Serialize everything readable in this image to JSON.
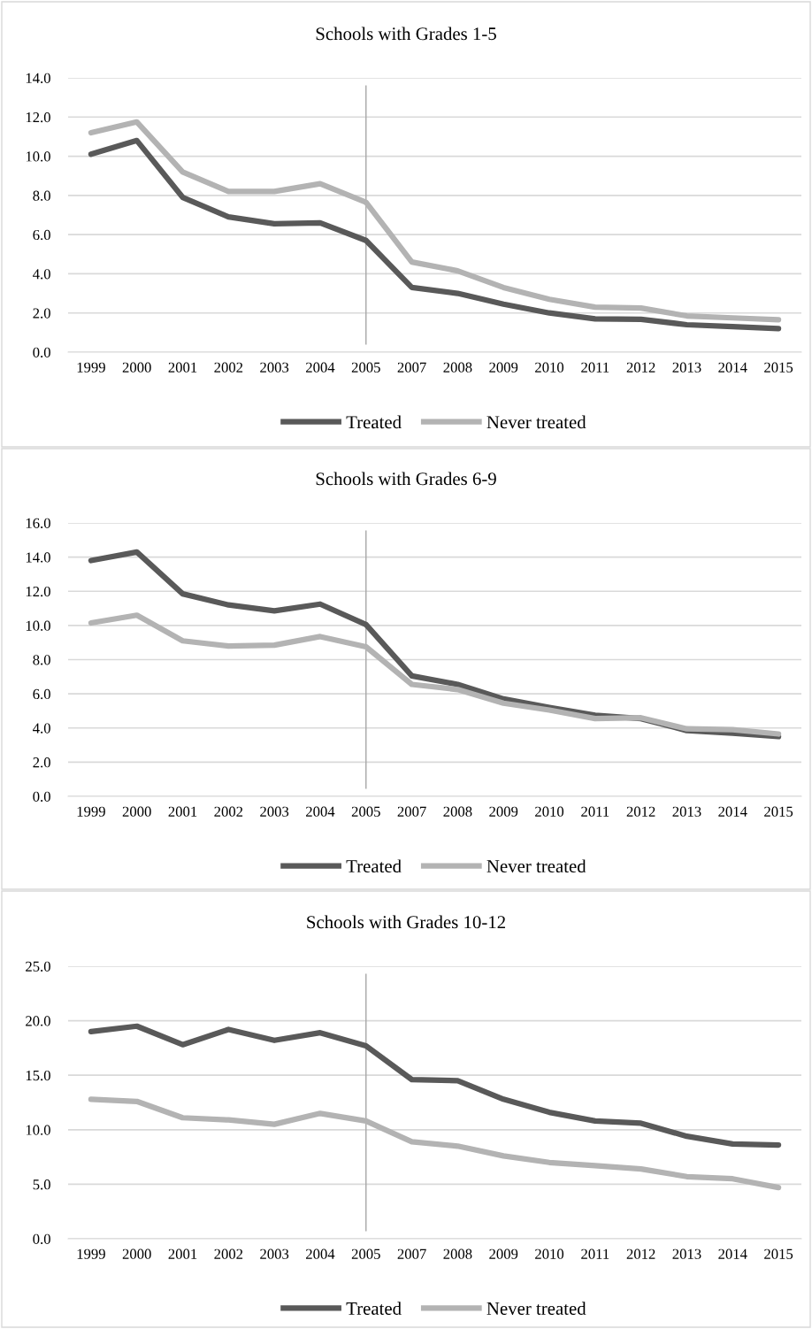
{
  "chart_data": [
    {
      "type": "line",
      "title": "Schools with Grades 1-5",
      "categories": [
        "1999",
        "2000",
        "2001",
        "2002",
        "2003",
        "2004",
        "2005",
        "2007",
        "2008",
        "2009",
        "2010",
        "2011",
        "2012",
        "2013",
        "2014",
        "2015"
      ],
      "series": [
        {
          "name": "Treated",
          "color": "#595959",
          "values": [
            10.1,
            10.8,
            7.9,
            6.9,
            6.55,
            6.6,
            5.7,
            3.3,
            3.0,
            2.45,
            2.0,
            1.7,
            1.68,
            1.4,
            1.3,
            1.2
          ]
        },
        {
          "name": "Never treated",
          "color": "#b3b3b3",
          "values": [
            11.2,
            11.75,
            9.2,
            8.2,
            8.2,
            8.6,
            7.65,
            4.6,
            4.15,
            3.3,
            2.7,
            2.3,
            2.25,
            1.85,
            1.75,
            1.65
          ]
        }
      ],
      "ylim": [
        0,
        14
      ],
      "yticks": [
        {
          "value": 0,
          "label": "0.0"
        },
        {
          "value": 2,
          "label": "2.0"
        },
        {
          "value": 4,
          "label": "4.0"
        },
        {
          "value": 6,
          "label": "6.0"
        },
        {
          "value": 8,
          "label": "8.0"
        },
        {
          "value": 10,
          "label": "10.0"
        },
        {
          "value": 12,
          "label": "12.0"
        },
        {
          "value": 14,
          "label": "14.0"
        }
      ],
      "grid": "y",
      "legend": "bottom",
      "marker": "none",
      "line_style": "solid",
      "ref_lines": [
        {
          "axis": "x",
          "value": "2005",
          "color": "#a6a6a6"
        }
      ]
    },
    {
      "type": "line",
      "title": "Schools with Grades 6-9",
      "categories": [
        "1999",
        "2000",
        "2001",
        "2002",
        "2003",
        "2004",
        "2005",
        "2007",
        "2008",
        "2009",
        "2010",
        "2011",
        "2012",
        "2013",
        "2014",
        "2015"
      ],
      "series": [
        {
          "name": "Treated",
          "color": "#595959",
          "values": [
            13.8,
            14.3,
            11.85,
            11.2,
            10.85,
            11.25,
            10.05,
            7.05,
            6.55,
            5.7,
            5.2,
            4.75,
            4.55,
            3.85,
            3.7,
            3.5
          ]
        },
        {
          "name": "Never treated",
          "color": "#b3b3b3",
          "values": [
            10.15,
            10.6,
            9.1,
            8.8,
            8.85,
            9.35,
            8.75,
            6.55,
            6.25,
            5.45,
            5.05,
            4.55,
            4.6,
            3.95,
            3.9,
            3.65
          ]
        }
      ],
      "ylim": [
        0,
        16
      ],
      "yticks": [
        {
          "value": 0,
          "label": "0.0"
        },
        {
          "value": 2,
          "label": "2.0"
        },
        {
          "value": 4,
          "label": "4.0"
        },
        {
          "value": 6,
          "label": "6.0"
        },
        {
          "value": 8,
          "label": "8.0"
        },
        {
          "value": 10,
          "label": "10.0"
        },
        {
          "value": 12,
          "label": "12.0"
        },
        {
          "value": 14,
          "label": "14.0"
        },
        {
          "value": 16,
          "label": "16.0"
        }
      ],
      "grid": "y",
      "legend": "bottom",
      "marker": "none",
      "line_style": "solid",
      "ref_lines": [
        {
          "axis": "x",
          "value": "2005",
          "color": "#a6a6a6"
        }
      ]
    },
    {
      "type": "line",
      "title": "Schools with Grades 10-12",
      "categories": [
        "1999",
        "2000",
        "2001",
        "2002",
        "2003",
        "2004",
        "2005",
        "2007",
        "2008",
        "2009",
        "2010",
        "2011",
        "2012",
        "2013",
        "2014",
        "2015"
      ],
      "series": [
        {
          "name": "Treated",
          "color": "#595959",
          "values": [
            19.0,
            19.5,
            17.8,
            19.2,
            18.2,
            18.9,
            17.7,
            14.6,
            14.5,
            12.8,
            11.6,
            10.8,
            10.6,
            9.4,
            8.7,
            8.6
          ]
        },
        {
          "name": "Never treated",
          "color": "#b3b3b3",
          "values": [
            12.8,
            12.6,
            11.1,
            10.9,
            10.5,
            11.5,
            10.8,
            8.9,
            8.5,
            7.6,
            7.0,
            6.7,
            6.4,
            5.7,
            5.5,
            4.7
          ]
        }
      ],
      "ylim": [
        0,
        25
      ],
      "yticks": [
        {
          "value": 0,
          "label": "0.0"
        },
        {
          "value": 5,
          "label": "5.0"
        },
        {
          "value": 10,
          "label": "10.0"
        },
        {
          "value": 15,
          "label": "15.0"
        },
        {
          "value": 20,
          "label": "20.0"
        },
        {
          "value": 25,
          "label": "25.0"
        }
      ],
      "grid": "y",
      "legend": "bottom",
      "marker": "none",
      "line_style": "solid",
      "ref_lines": [
        {
          "axis": "x",
          "value": "2005",
          "color": "#a6a6a6"
        }
      ]
    }
  ]
}
